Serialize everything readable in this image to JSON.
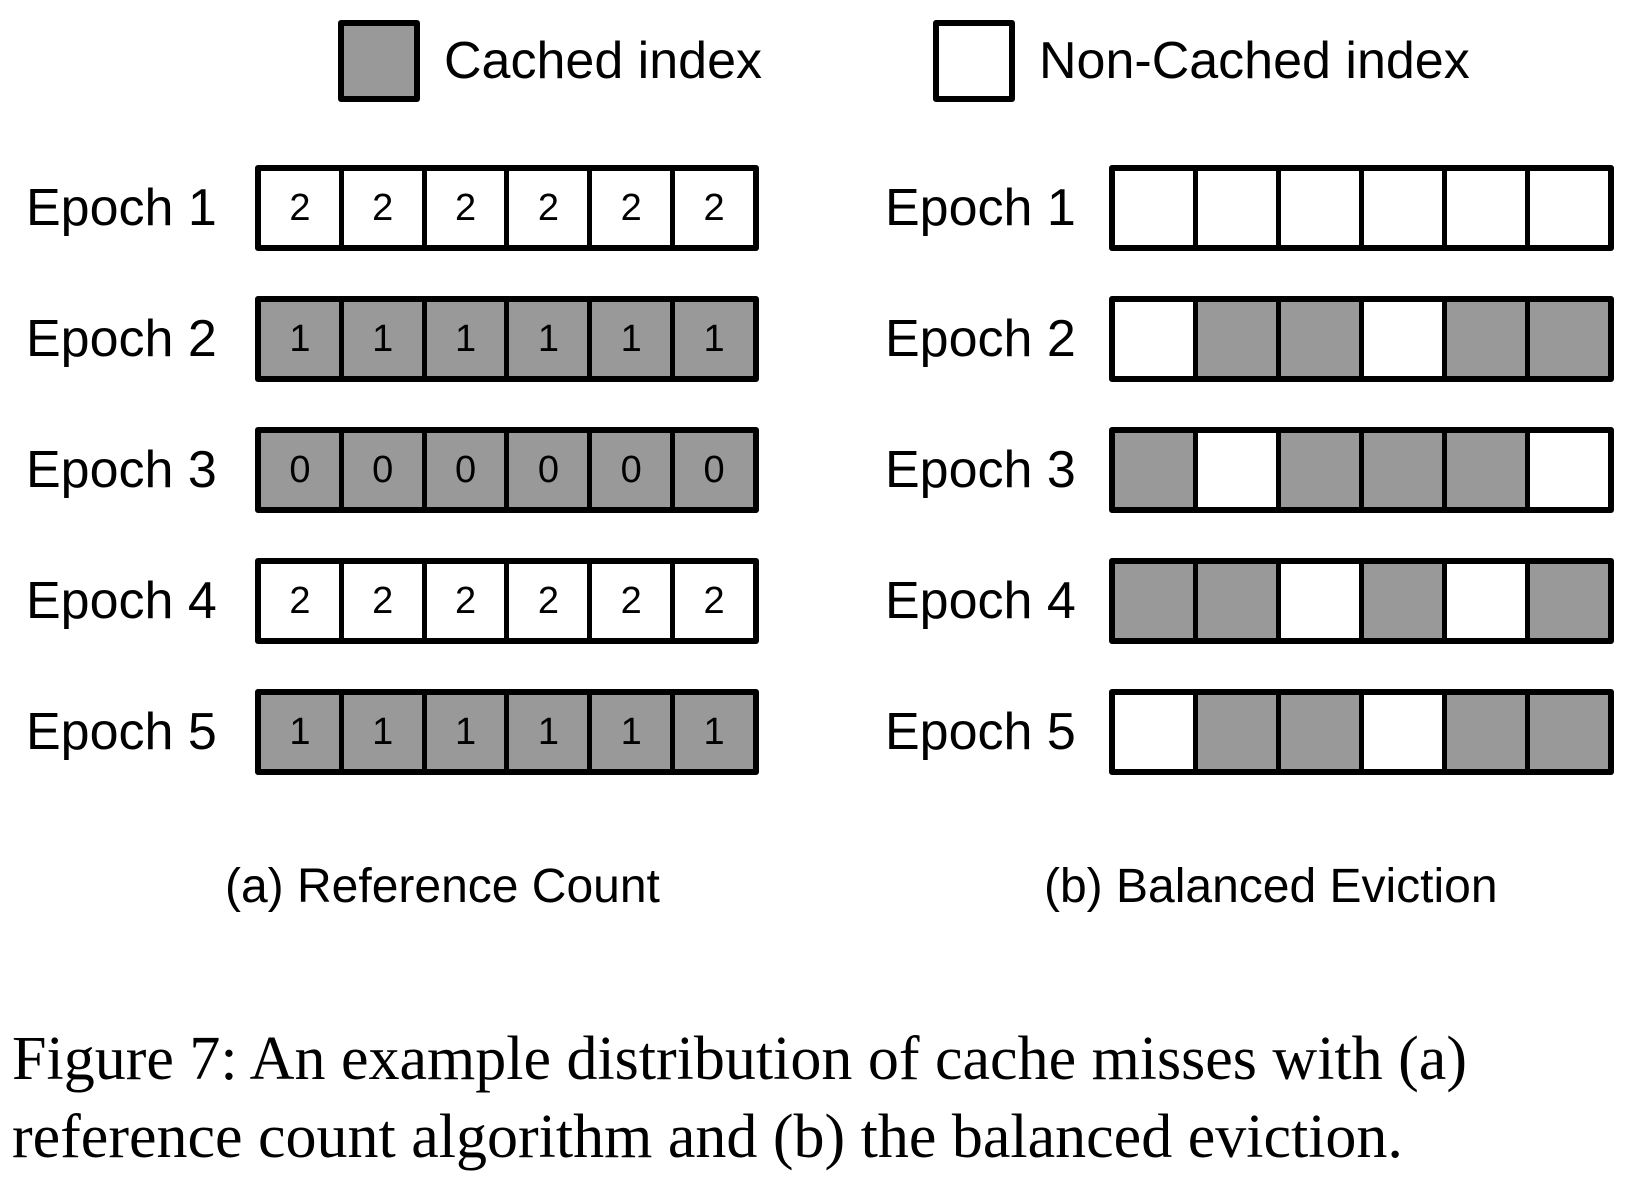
{
  "colors": {
    "cached": "#999999",
    "noncached": "#ffffff",
    "border": "#000000"
  },
  "legend": {
    "cached_label": "Cached index",
    "noncached_label": "Non-Cached index"
  },
  "panel_a": {
    "caption": "(a) Reference Count",
    "rows": [
      {
        "label": "Epoch 1",
        "cells": [
          {
            "v": "2",
            "c": false
          },
          {
            "v": "2",
            "c": false
          },
          {
            "v": "2",
            "c": false
          },
          {
            "v": "2",
            "c": false
          },
          {
            "v": "2",
            "c": false
          },
          {
            "v": "2",
            "c": false
          }
        ]
      },
      {
        "label": "Epoch 2",
        "cells": [
          {
            "v": "1",
            "c": true
          },
          {
            "v": "1",
            "c": true
          },
          {
            "v": "1",
            "c": true
          },
          {
            "v": "1",
            "c": true
          },
          {
            "v": "1",
            "c": true
          },
          {
            "v": "1",
            "c": true
          }
        ]
      },
      {
        "label": "Epoch 3",
        "cells": [
          {
            "v": "0",
            "c": true
          },
          {
            "v": "0",
            "c": true
          },
          {
            "v": "0",
            "c": true
          },
          {
            "v": "0",
            "c": true
          },
          {
            "v": "0",
            "c": true
          },
          {
            "v": "0",
            "c": true
          }
        ]
      },
      {
        "label": "Epoch 4",
        "cells": [
          {
            "v": "2",
            "c": false
          },
          {
            "v": "2",
            "c": false
          },
          {
            "v": "2",
            "c": false
          },
          {
            "v": "2",
            "c": false
          },
          {
            "v": "2",
            "c": false
          },
          {
            "v": "2",
            "c": false
          }
        ]
      },
      {
        "label": "Epoch 5",
        "cells": [
          {
            "v": "1",
            "c": true
          },
          {
            "v": "1",
            "c": true
          },
          {
            "v": "1",
            "c": true
          },
          {
            "v": "1",
            "c": true
          },
          {
            "v": "1",
            "c": true
          },
          {
            "v": "1",
            "c": true
          }
        ]
      }
    ]
  },
  "panel_b": {
    "caption": "(b) Balanced Eviction",
    "rows": [
      {
        "label": "Epoch 1",
        "cells": [
          {
            "v": "",
            "c": false
          },
          {
            "v": "",
            "c": false
          },
          {
            "v": "",
            "c": false
          },
          {
            "v": "",
            "c": false
          },
          {
            "v": "",
            "c": false
          },
          {
            "v": "",
            "c": false
          }
        ]
      },
      {
        "label": "Epoch 2",
        "cells": [
          {
            "v": "",
            "c": false
          },
          {
            "v": "",
            "c": true
          },
          {
            "v": "",
            "c": true
          },
          {
            "v": "",
            "c": false
          },
          {
            "v": "",
            "c": true
          },
          {
            "v": "",
            "c": true
          }
        ]
      },
      {
        "label": "Epoch 3",
        "cells": [
          {
            "v": "",
            "c": true
          },
          {
            "v": "",
            "c": false
          },
          {
            "v": "",
            "c": true
          },
          {
            "v": "",
            "c": true
          },
          {
            "v": "",
            "c": true
          },
          {
            "v": "",
            "c": false
          }
        ]
      },
      {
        "label": "Epoch 4",
        "cells": [
          {
            "v": "",
            "c": true
          },
          {
            "v": "",
            "c": true
          },
          {
            "v": "",
            "c": false
          },
          {
            "v": "",
            "c": true
          },
          {
            "v": "",
            "c": false
          },
          {
            "v": "",
            "c": true
          }
        ]
      },
      {
        "label": "Epoch 5",
        "cells": [
          {
            "v": "",
            "c": false
          },
          {
            "v": "",
            "c": true
          },
          {
            "v": "",
            "c": true
          },
          {
            "v": "",
            "c": false
          },
          {
            "v": "",
            "c": true
          },
          {
            "v": "",
            "c": true
          }
        ]
      }
    ]
  },
  "figure_caption": "Figure 7: An example distribution of cache misses with (a) reference count algorithm and (b) the balanced eviction."
}
